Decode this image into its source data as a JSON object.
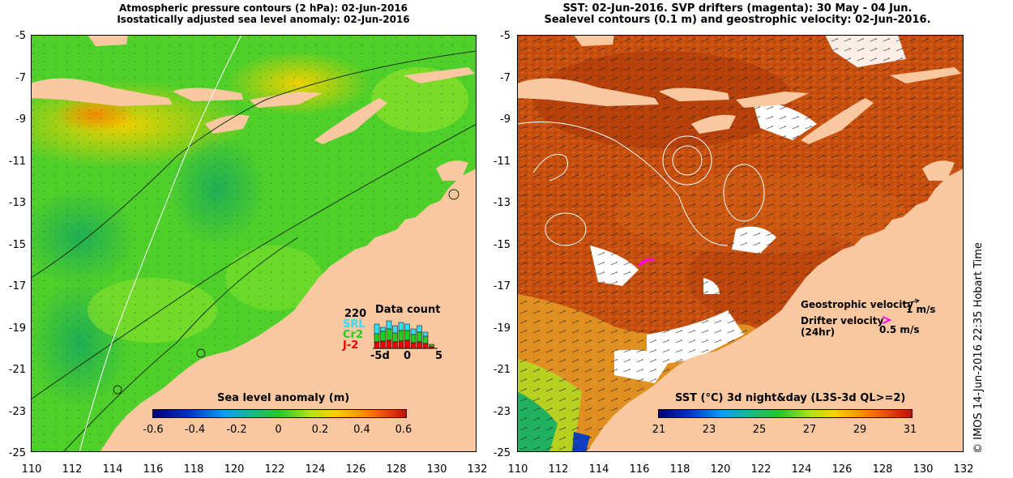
{
  "left_panel": {
    "title_line1": "Atmospheric pressure contours (2 hPa): 02-Jun-2016",
    "title_line2": "Isostatically adjusted sea level anomaly: 02-Jun-2016",
    "colorbar_title": "Sea level anomaly (m)",
    "colorbar_ticks": [
      "-0.6",
      "-0.4",
      "-0.2",
      "0",
      "0.2",
      "0.4",
      "0.6"
    ],
    "data_count": {
      "title": "Data count",
      "max_label": "220",
      "legend": [
        {
          "label": "SRL",
          "color": "#33ddff"
        },
        {
          "label": "Cr2",
          "color": "#22cc22"
        },
        {
          "label": "J-2",
          "color": "#ee0000"
        }
      ],
      "x_ticks": [
        "-5d",
        "0",
        "5"
      ]
    }
  },
  "right_panel": {
    "title_line1": "SST: 02-Jun-2016. SVP drifters (magenta): 30 May - 04 Jun.",
    "title_line2": "Sealevel contours (0.1 m) and geostrophic velocity: 02-Jun-2016.",
    "colorbar_title": "SST (°C) 3d night&day (L3S-3d QL>=2)",
    "colorbar_ticks": [
      "21",
      "23",
      "25",
      "27",
      "29",
      "31"
    ],
    "legend": {
      "geostrophic_label": "Geostrophic velocity",
      "geostrophic_scale": "1 m/s",
      "drifter_label": "Drifter velocity",
      "drifter_label2": "(24hr)",
      "drifter_scale": "0.5 m/s",
      "drifter_color": "#ff00ff"
    }
  },
  "axes": {
    "y_ticks": [
      "-5",
      "-7",
      "-9",
      "-11",
      "-13",
      "-15",
      "-17",
      "-19",
      "-21",
      "-23",
      "-25"
    ],
    "x_ticks": [
      "110",
      "112",
      "114",
      "116",
      "118",
      "120",
      "122",
      "124",
      "126",
      "128",
      "130",
      "132"
    ]
  },
  "credit": "© IMOS 14-Jun-2016 22:35 Hobart Time",
  "colors": {
    "land": "#f9c8a0",
    "sla_green": "#55dd22",
    "sst_orange": "#cc5511"
  }
}
